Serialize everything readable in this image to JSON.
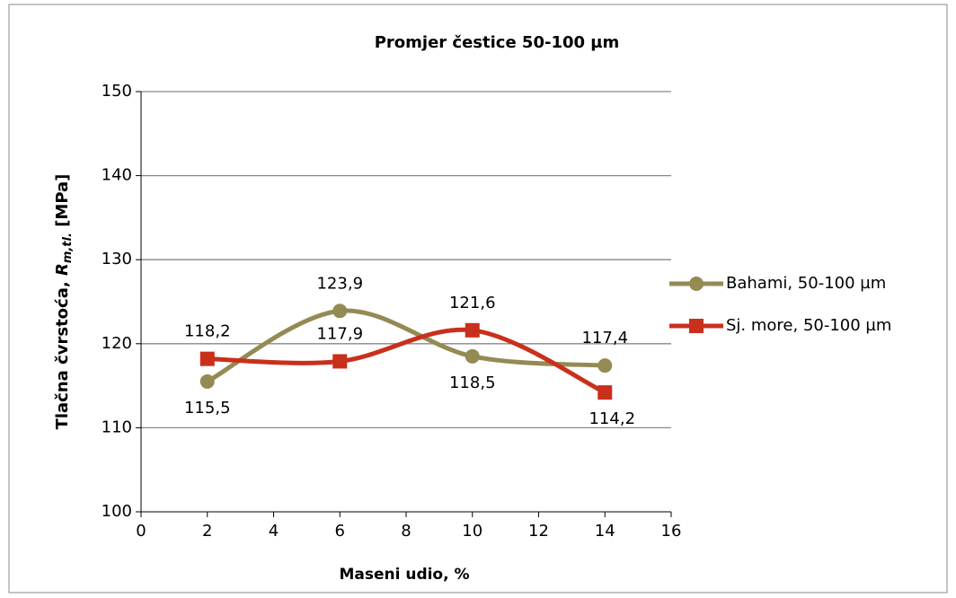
{
  "chart_data": {
    "type": "line",
    "title": "Promjer čestice 50-100 µm",
    "xlabel": "Maseni udio, %",
    "ylabel": [
      "Tlačna čvrstoća, ",
      "R",
      "m,tl.",
      " [MPa]"
    ],
    "x": [
      2,
      6,
      10,
      14
    ],
    "series": [
      {
        "name": "Bahami, 50-100 µm",
        "color": "#948a54",
        "marker": "circle",
        "values": [
          115.5,
          123.9,
          118.5,
          117.4
        ],
        "value_labels": [
          "115,5",
          "123,9",
          "118,5",
          "117,4"
        ]
      },
      {
        "name": "Sj. more, 50-100 µm",
        "color": "#c9301c",
        "marker": "square",
        "values": [
          118.2,
          117.9,
          121.6,
          114.2
        ],
        "value_labels": [
          "118,2",
          "117,9",
          "121,6",
          "114,2"
        ]
      }
    ],
    "xlim": [
      0,
      16
    ],
    "xticks": [
      0,
      2,
      4,
      6,
      8,
      10,
      12,
      14,
      16
    ],
    "ylim": [
      100,
      150
    ],
    "yticks": [
      100,
      110,
      120,
      130,
      140,
      150
    ],
    "grid": true,
    "smooth": true,
    "legend": "right"
  }
}
